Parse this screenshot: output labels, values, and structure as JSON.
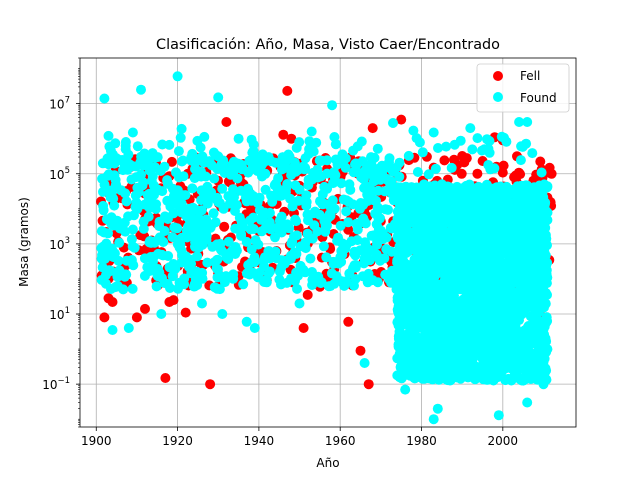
{
  "chart_data": {
    "type": "scatter",
    "title": "Clasificación: Año, Masa, Visto Caer/Encontrado",
    "xlabel": "Año",
    "ylabel": "Masa (gramos)",
    "xlim": [
      1896,
      2018
    ],
    "ylim": [
      0.006,
      200000000
    ],
    "yscale": "log",
    "grid": true,
    "legend_position": "top-right",
    "x_ticks": [
      1900,
      1920,
      1940,
      1960,
      1980,
      2000
    ],
    "y_ticks": [
      {
        "value": 0.1,
        "base": "10",
        "exp": "−1"
      },
      {
        "value": 10,
        "base": "10",
        "exp": "1"
      },
      {
        "value": 1000,
        "base": "10",
        "exp": "3"
      },
      {
        "value": 100000,
        "base": "10",
        "exp": "5"
      },
      {
        "value": 10000000,
        "base": "10",
        "exp": "7"
      }
    ],
    "series": [
      {
        "name": "Fell",
        "color": "#ff0000",
        "points": [
          [
            1902,
            8
          ],
          [
            1903,
            28
          ],
          [
            1904,
            22
          ],
          [
            1906,
            95
          ],
          [
            1910,
            8
          ],
          [
            1912,
            14
          ],
          [
            1917,
            0.15
          ],
          [
            1918,
            22
          ],
          [
            1919,
            25
          ],
          [
            1922,
            11
          ],
          [
            1928,
            0.1
          ],
          [
            1930,
            140
          ],
          [
            1935,
            120
          ],
          [
            1940,
            300
          ],
          [
            1946,
            1300000
          ],
          [
            1947,
            23000000
          ],
          [
            1948,
            1000000
          ],
          [
            1951,
            4
          ],
          [
            1952,
            35
          ],
          [
            1955,
            60
          ],
          [
            1958,
            300
          ],
          [
            1962,
            6
          ],
          [
            1965,
            0.9
          ],
          [
            1967,
            0.1
          ],
          [
            1968,
            2000000
          ],
          [
            1975,
            3500000
          ],
          [
            1977,
            300000
          ],
          [
            1983,
            150000
          ],
          [
            1988,
            250000
          ],
          [
            1990,
            320000
          ],
          [
            1998,
            1100000
          ],
          [
            2000,
            900000
          ],
          [
            2003,
            30
          ],
          [
            2008,
            15
          ],
          [
            2010,
            8
          ],
          [
            2012,
            100000
          ],
          [
            1905,
            2000
          ],
          [
            1912,
            5000
          ],
          [
            1925,
            800
          ],
          [
            1937,
            1500
          ],
          [
            1955,
            3000
          ],
          [
            1932,
            3000000
          ],
          [
            1972,
            120000
          ]
        ]
      },
      {
        "name": "Found",
        "color": "#00ffff",
        "points": [
          [
            1902,
            14000000
          ],
          [
            1911,
            25000000
          ],
          [
            1920,
            60000000
          ],
          [
            1930,
            15000000
          ],
          [
            1958,
            9000000
          ],
          [
            1973,
            2800000
          ],
          [
            1978,
            1700000
          ],
          [
            1983,
            1500000
          ],
          [
            1992,
            2000000
          ],
          [
            2004,
            3000000
          ],
          [
            2006,
            3000000
          ],
          [
            1903,
            1200000
          ],
          [
            1909,
            1500000
          ],
          [
            1921,
            1900000
          ],
          [
            1935,
            1000000
          ],
          [
            1953,
            1600000
          ],
          [
            1904,
            3.5
          ],
          [
            1908,
            4
          ],
          [
            1916,
            10
          ],
          [
            1926,
            20
          ],
          [
            1931,
            10
          ],
          [
            1937,
            6
          ],
          [
            1939,
            4
          ],
          [
            1950,
            20
          ],
          [
            1966,
            0.4
          ],
          [
            1976,
            0.07
          ],
          [
            1983,
            0.01
          ],
          [
            1984,
            0.02
          ],
          [
            1999,
            0.013
          ],
          [
            2006,
            0.03
          ],
          [
            2010,
            0.1
          ]
        ]
      }
    ]
  }
}
